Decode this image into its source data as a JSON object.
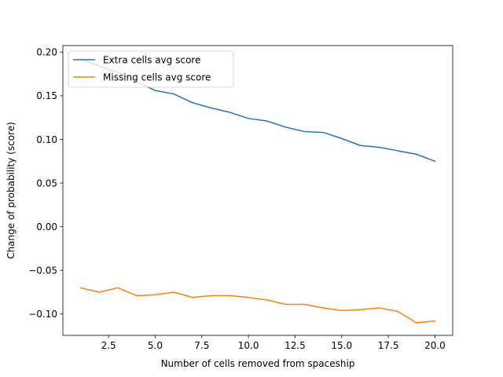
{
  "chart_data": {
    "type": "line",
    "title": "",
    "xlabel": "Number of cells removed from spaceship",
    "ylabel": "Change of probability (score)",
    "xlim": [
      0.05,
      20.95
    ],
    "ylim": [
      -0.1245,
      0.2075
    ],
    "grid": false,
    "legend_position": "upper-left",
    "x_ticks": [
      2.5,
      5.0,
      7.5,
      10.0,
      12.5,
      15.0,
      17.5,
      20.0
    ],
    "x_tick_labels": [
      "2.5",
      "5.0",
      "7.5",
      "10.0",
      "12.5",
      "15.0",
      "17.5",
      "20.0"
    ],
    "y_ticks": [
      -0.1,
      -0.05,
      0.0,
      0.05,
      0.1,
      0.15,
      0.2
    ],
    "y_tick_labels": [
      "−0.10",
      "−0.05",
      "0.00",
      "0.05",
      "0.10",
      "0.15",
      "0.20"
    ],
    "x": [
      1,
      2,
      3,
      4,
      5,
      6,
      7,
      8,
      9,
      10,
      11,
      12,
      13,
      14,
      15,
      16,
      17,
      18,
      19,
      20
    ],
    "series": [
      {
        "name": "Extra cells avg score",
        "color": "#1f77b4",
        "values": [
          0.192,
          0.184,
          0.177,
          0.166,
          0.156,
          0.152,
          0.142,
          0.136,
          0.131,
          0.124,
          0.121,
          0.114,
          0.109,
          0.108,
          0.101,
          0.093,
          0.091,
          0.087,
          0.083,
          0.075
        ]
      },
      {
        "name": "Missing cells avg score",
        "color": "#ff7f0e",
        "values": [
          -0.07,
          -0.075,
          -0.07,
          -0.079,
          -0.078,
          -0.075,
          -0.081,
          -0.079,
          -0.079,
          -0.081,
          -0.084,
          -0.089,
          -0.089,
          -0.093,
          -0.096,
          -0.095,
          -0.093,
          -0.097,
          -0.11,
          -0.108
        ]
      }
    ]
  }
}
